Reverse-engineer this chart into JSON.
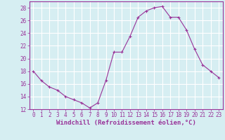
{
  "x": [
    0,
    1,
    2,
    3,
    4,
    5,
    6,
    7,
    8,
    9,
    10,
    11,
    12,
    13,
    14,
    15,
    16,
    17,
    18,
    19,
    20,
    21,
    22,
    23
  ],
  "y": [
    18,
    16.5,
    15.5,
    15,
    14,
    13.5,
    13,
    12.2,
    13,
    16.5,
    21,
    21,
    23.5,
    26.5,
    27.5,
    28,
    28.2,
    26.5,
    26.5,
    24.5,
    21.5,
    19,
    18,
    17
  ],
  "line_color": "#993399",
  "marker": "+",
  "bg_color": "#d6eef2",
  "grid_color": "#ffffff",
  "xlabel": "Windchill (Refroidissement éolien,°C)",
  "xlabel_color": "#993399",
  "tick_color": "#993399",
  "spine_color": "#993399",
  "ylim": [
    12,
    29
  ],
  "yticks": [
    12,
    14,
    16,
    18,
    20,
    22,
    24,
    26,
    28
  ],
  "xlim": [
    -0.5,
    23.5
  ],
  "xticks": [
    0,
    1,
    2,
    3,
    4,
    5,
    6,
    7,
    8,
    9,
    10,
    11,
    12,
    13,
    14,
    15,
    16,
    17,
    18,
    19,
    20,
    21,
    22,
    23
  ],
  "tick_fontsize": 5.5,
  "xlabel_fontsize": 6.5
}
